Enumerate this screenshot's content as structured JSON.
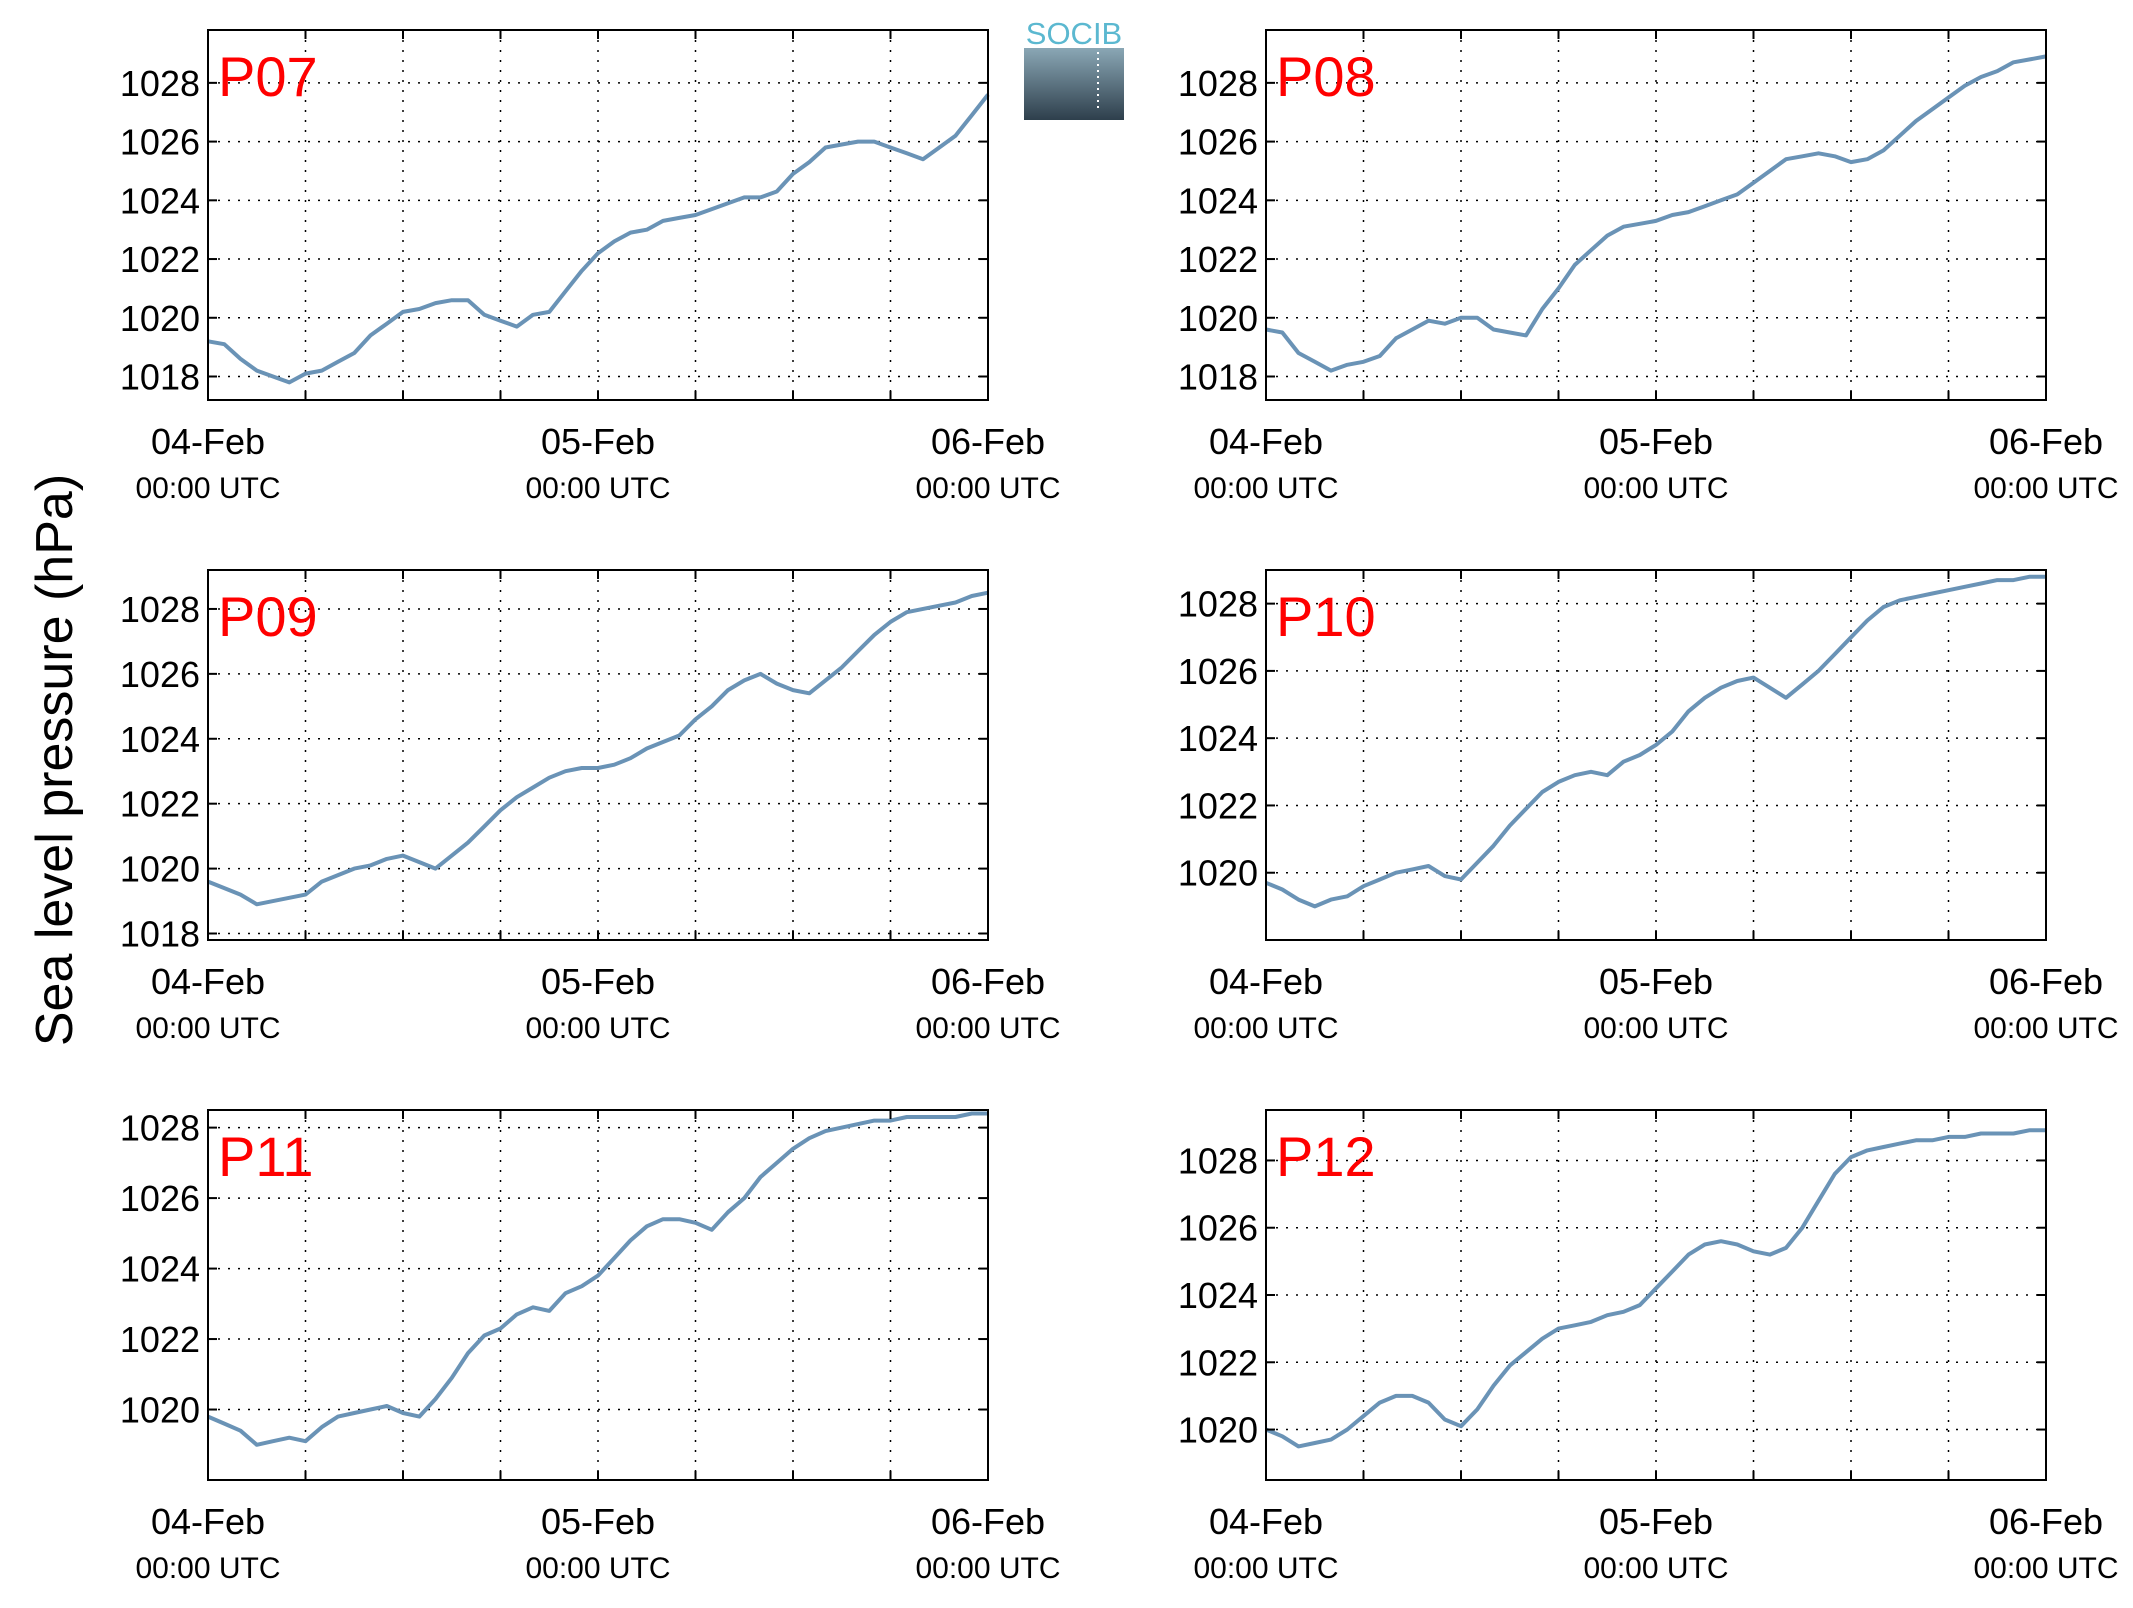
{
  "figure": {
    "ylabel": "Sea level pressure (hPa)",
    "logo_text": "SOCIB"
  },
  "colors": {
    "line": "#6a93b6",
    "panel_label": "#ff0000",
    "grid": "#000000",
    "logo_top": "#5bb8d0",
    "logo_bottom": "#2e3f4c"
  },
  "chart_data": [
    {
      "type": "line",
      "title": "P07",
      "grid": true,
      "xlim": [
        "2016-02-04T00:00",
        "2016-02-06T00:00"
      ],
      "xticks": [
        {
          "date": "04-Feb",
          "time": "00:00 UTC"
        },
        {
          "date": "05-Feb",
          "time": "00:00 UTC"
        },
        {
          "date": "06-Feb",
          "time": "00:00 UTC"
        }
      ],
      "ylim": [
        1017.2,
        1029.8
      ],
      "yticks": [
        1018,
        1020,
        1022,
        1024,
        1026,
        1028
      ],
      "series": [
        {
          "x_hours": [
            0,
            1,
            2,
            3,
            4,
            5,
            6,
            7,
            8,
            9,
            10,
            11,
            12,
            13,
            14,
            15,
            16,
            17,
            18,
            19,
            20,
            21,
            22,
            23,
            24,
            25,
            26,
            27,
            28,
            29,
            30,
            31,
            32,
            33,
            34,
            35,
            36,
            37,
            38,
            39,
            40,
            41,
            42,
            43,
            44,
            45,
            46,
            47,
            48
          ],
          "values": [
            1019.2,
            1019.1,
            1018.6,
            1018.2,
            1018.0,
            1017.8,
            1018.1,
            1018.2,
            1018.5,
            1018.8,
            1019.4,
            1019.8,
            1020.2,
            1020.3,
            1020.5,
            1020.6,
            1020.6,
            1020.1,
            1019.9,
            1019.7,
            1020.1,
            1020.2,
            1020.9,
            1021.6,
            1022.2,
            1022.6,
            1022.9,
            1023.0,
            1023.3,
            1023.4,
            1023.5,
            1023.7,
            1023.9,
            1024.1,
            1024.1,
            1024.3,
            1024.9,
            1025.3,
            1025.8,
            1025.9,
            1026.0,
            1026.0,
            1025.8,
            1025.6,
            1025.4,
            1025.8,
            1026.2,
            1026.9,
            1027.6
          ]
        }
      ]
    },
    {
      "type": "line",
      "title": "P08",
      "grid": true,
      "xlim": [
        "2016-02-04T00:00",
        "2016-02-06T00:00"
      ],
      "xticks": [
        {
          "date": "04-Feb",
          "time": "00:00 UTC"
        },
        {
          "date": "05-Feb",
          "time": "00:00 UTC"
        },
        {
          "date": "06-Feb",
          "time": "00:00 UTC"
        }
      ],
      "ylim": [
        1017.2,
        1029.8
      ],
      "yticks": [
        1018,
        1020,
        1022,
        1024,
        1026,
        1028
      ],
      "series": [
        {
          "x_hours": [
            0,
            1,
            2,
            3,
            4,
            5,
            6,
            7,
            8,
            9,
            10,
            11,
            12,
            13,
            14,
            15,
            16,
            17,
            18,
            19,
            20,
            21,
            22,
            23,
            24,
            25,
            26,
            27,
            28,
            29,
            30,
            31,
            32,
            33,
            34,
            35,
            36,
            37,
            38,
            39,
            40,
            41,
            42,
            43,
            44,
            45,
            46,
            47,
            48
          ],
          "values": [
            1019.6,
            1019.5,
            1018.8,
            1018.5,
            1018.2,
            1018.4,
            1018.5,
            1018.7,
            1019.3,
            1019.6,
            1019.9,
            1019.8,
            1020.0,
            1020.0,
            1019.6,
            1019.5,
            1019.4,
            1020.3,
            1021.0,
            1021.8,
            1022.3,
            1022.8,
            1023.1,
            1023.2,
            1023.3,
            1023.5,
            1023.6,
            1023.8,
            1024.0,
            1024.2,
            1024.6,
            1025.0,
            1025.4,
            1025.5,
            1025.6,
            1025.5,
            1025.3,
            1025.4,
            1025.7,
            1026.2,
            1026.7,
            1027.1,
            1027.5,
            1027.9,
            1028.2,
            1028.4,
            1028.7,
            1028.8,
            1028.9
          ]
        }
      ]
    },
    {
      "type": "line",
      "title": "P09",
      "grid": true,
      "xlim": [
        "2016-02-04T00:00",
        "2016-02-06T00:00"
      ],
      "xticks": [
        {
          "date": "04-Feb",
          "time": "00:00 UTC"
        },
        {
          "date": "05-Feb",
          "time": "00:00 UTC"
        },
        {
          "date": "06-Feb",
          "time": "00:00 UTC"
        }
      ],
      "ylim": [
        1017.8,
        1029.2
      ],
      "yticks": [
        1018,
        1020,
        1022,
        1024,
        1026,
        1028
      ],
      "series": [
        {
          "x_hours": [
            0,
            1,
            2,
            3,
            4,
            5,
            6,
            7,
            8,
            9,
            10,
            11,
            12,
            13,
            14,
            15,
            16,
            17,
            18,
            19,
            20,
            21,
            22,
            23,
            24,
            25,
            26,
            27,
            28,
            29,
            30,
            31,
            32,
            33,
            34,
            35,
            36,
            37,
            38,
            39,
            40,
            41,
            42,
            43,
            44,
            45,
            46,
            47,
            48
          ],
          "values": [
            1019.6,
            1019.4,
            1019.2,
            1018.9,
            1019.0,
            1019.1,
            1019.2,
            1019.6,
            1019.8,
            1020.0,
            1020.1,
            1020.3,
            1020.4,
            1020.2,
            1020.0,
            1020.4,
            1020.8,
            1021.3,
            1021.8,
            1022.2,
            1022.5,
            1022.8,
            1023.0,
            1023.1,
            1023.1,
            1023.2,
            1023.4,
            1023.7,
            1023.9,
            1024.1,
            1024.6,
            1025.0,
            1025.5,
            1025.8,
            1026.0,
            1025.7,
            1025.5,
            1025.4,
            1025.8,
            1026.2,
            1026.7,
            1027.2,
            1027.6,
            1027.9,
            1028.0,
            1028.1,
            1028.2,
            1028.4,
            1028.5
          ]
        }
      ]
    },
    {
      "type": "line",
      "title": "P10",
      "grid": true,
      "xlim": [
        "2016-02-04T00:00",
        "2016-02-06T00:00"
      ],
      "xticks": [
        {
          "date": "04-Feb",
          "time": "00:00 UTC"
        },
        {
          "date": "05-Feb",
          "time": "00:00 UTC"
        },
        {
          "date": "06-Feb",
          "time": "00:00 UTC"
        }
      ],
      "ylim": [
        1018.0,
        1029.0
      ],
      "yticks": [
        1020,
        1022,
        1024,
        1026,
        1028
      ],
      "series": [
        {
          "x_hours": [
            0,
            1,
            2,
            3,
            4,
            5,
            6,
            7,
            8,
            9,
            10,
            11,
            12,
            13,
            14,
            15,
            16,
            17,
            18,
            19,
            20,
            21,
            22,
            23,
            24,
            25,
            26,
            27,
            28,
            29,
            30,
            31,
            32,
            33,
            34,
            35,
            36,
            37,
            38,
            39,
            40,
            41,
            42,
            43,
            44,
            45,
            46,
            47,
            48
          ],
          "values": [
            1019.7,
            1019.5,
            1019.2,
            1019.0,
            1019.2,
            1019.3,
            1019.6,
            1019.8,
            1020.0,
            1020.1,
            1020.2,
            1019.9,
            1019.8,
            1020.3,
            1020.8,
            1021.4,
            1021.9,
            1022.4,
            1022.7,
            1022.9,
            1023.0,
            1022.9,
            1023.3,
            1023.5,
            1023.8,
            1024.2,
            1024.8,
            1025.2,
            1025.5,
            1025.7,
            1025.8,
            1025.5,
            1025.2,
            1025.6,
            1026.0,
            1026.5,
            1027.0,
            1027.5,
            1027.9,
            1028.1,
            1028.2,
            1028.3,
            1028.4,
            1028.5,
            1028.6,
            1028.7,
            1028.7,
            1028.8,
            1028.8
          ]
        }
      ]
    },
    {
      "type": "line",
      "title": "P11",
      "grid": true,
      "xlim": [
        "2016-02-04T00:00",
        "2016-02-06T00:00"
      ],
      "xticks": [
        {
          "date": "04-Feb",
          "time": "00:00 UTC"
        },
        {
          "date": "05-Feb",
          "time": "00:00 UTC"
        },
        {
          "date": "06-Feb",
          "time": "00:00 UTC"
        }
      ],
      "ylim": [
        1018.0,
        1028.5
      ],
      "yticks": [
        1020,
        1022,
        1024,
        1026,
        1028
      ],
      "series": [
        {
          "x_hours": [
            0,
            1,
            2,
            3,
            4,
            5,
            6,
            7,
            8,
            9,
            10,
            11,
            12,
            13,
            14,
            15,
            16,
            17,
            18,
            19,
            20,
            21,
            22,
            23,
            24,
            25,
            26,
            27,
            28,
            29,
            30,
            31,
            32,
            33,
            34,
            35,
            36,
            37,
            38,
            39,
            40,
            41,
            42,
            43,
            44,
            45,
            46,
            47,
            48
          ],
          "values": [
            1019.8,
            1019.6,
            1019.4,
            1019.0,
            1019.1,
            1019.2,
            1019.1,
            1019.5,
            1019.8,
            1019.9,
            1020.0,
            1020.1,
            1019.9,
            1019.8,
            1020.3,
            1020.9,
            1021.6,
            1022.1,
            1022.3,
            1022.7,
            1022.9,
            1022.8,
            1023.3,
            1023.5,
            1023.8,
            1024.3,
            1024.8,
            1025.2,
            1025.4,
            1025.4,
            1025.3,
            1025.1,
            1025.6,
            1026.0,
            1026.6,
            1027.0,
            1027.4,
            1027.7,
            1027.9,
            1028.0,
            1028.1,
            1028.2,
            1028.2,
            1028.3,
            1028.3,
            1028.3,
            1028.3,
            1028.4,
            1028.4
          ]
        }
      ]
    },
    {
      "type": "line",
      "title": "P12",
      "grid": true,
      "xlim": [
        "2016-02-04T00:00",
        "2016-02-06T00:00"
      ],
      "xticks": [
        {
          "date": "04-Feb",
          "time": "00:00 UTC"
        },
        {
          "date": "05-Feb",
          "time": "00:00 UTC"
        },
        {
          "date": "06-Feb",
          "time": "00:00 UTC"
        }
      ],
      "ylim": [
        1018.5,
        1029.5
      ],
      "yticks": [
        1020,
        1022,
        1024,
        1026,
        1028
      ],
      "series": [
        {
          "x_hours": [
            0,
            1,
            2,
            3,
            4,
            5,
            6,
            7,
            8,
            9,
            10,
            11,
            12,
            13,
            14,
            15,
            16,
            17,
            18,
            19,
            20,
            21,
            22,
            23,
            24,
            25,
            26,
            27,
            28,
            29,
            30,
            31,
            32,
            33,
            34,
            35,
            36,
            37,
            38,
            39,
            40,
            41,
            42,
            43,
            44,
            45,
            46,
            47,
            48
          ],
          "values": [
            1020.0,
            1019.8,
            1019.5,
            1019.6,
            1019.7,
            1020.0,
            1020.4,
            1020.8,
            1021.0,
            1021.0,
            1020.8,
            1020.3,
            1020.1,
            1020.6,
            1021.3,
            1021.9,
            1022.3,
            1022.7,
            1023.0,
            1023.1,
            1023.2,
            1023.4,
            1023.5,
            1023.7,
            1024.2,
            1024.7,
            1025.2,
            1025.5,
            1025.6,
            1025.5,
            1025.3,
            1025.2,
            1025.4,
            1026.0,
            1026.8,
            1027.6,
            1028.1,
            1028.3,
            1028.4,
            1028.5,
            1028.6,
            1028.6,
            1028.7,
            1028.7,
            1028.8,
            1028.8,
            1028.8,
            1028.9,
            1028.9
          ]
        }
      ]
    }
  ]
}
